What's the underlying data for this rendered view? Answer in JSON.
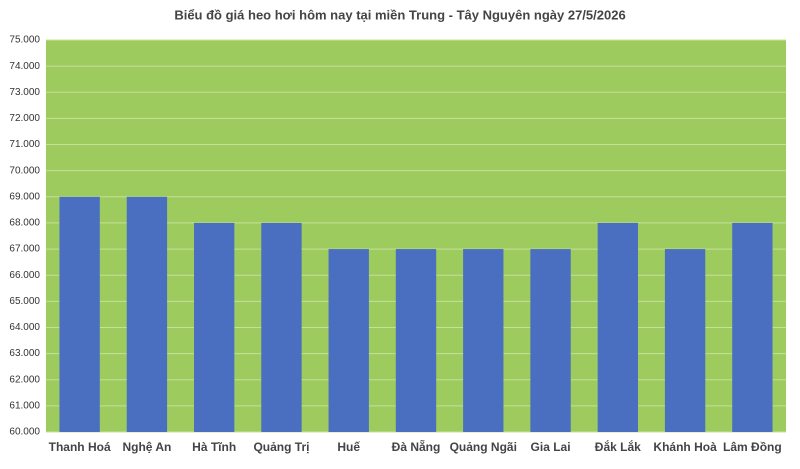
{
  "chart_data": {
    "type": "bar",
    "title": "Biểu đồ giá heo hơi hôm nay tại miền Trung - Tây Nguyên ngày 27/5/2026",
    "categories": [
      "Thanh Hoá",
      "Nghệ An",
      "Hà Tĩnh",
      "Quảng Trị",
      "Huế",
      "Đà Nẵng",
      "Quảng Ngãi",
      "Gia Lai",
      "Đắk Lắk",
      "Khánh Hoà",
      "Lâm Đồng"
    ],
    "values": [
      69000,
      69000,
      68000,
      68000,
      67000,
      67000,
      67000,
      67000,
      68000,
      67000,
      68000
    ],
    "color": "#4a6fc0",
    "ylim": [
      60000,
      75000
    ],
    "yticks": [
      {
        "value": 60000,
        "label": "60.000"
      },
      {
        "value": 61000,
        "label": "61.000"
      },
      {
        "value": 62000,
        "label": "62.000"
      },
      {
        "value": 63000,
        "label": "63.000"
      },
      {
        "value": 64000,
        "label": "64.000"
      },
      {
        "value": 65000,
        "label": "65.000"
      },
      {
        "value": 66000,
        "label": "66.000"
      },
      {
        "value": 67000,
        "label": "67.000"
      },
      {
        "value": 68000,
        "label": "68.000"
      },
      {
        "value": 69000,
        "label": "69.000"
      },
      {
        "value": 70000,
        "label": "70.000"
      },
      {
        "value": 71000,
        "label": "71.000"
      },
      {
        "value": 72000,
        "label": "72.000"
      },
      {
        "value": 73000,
        "label": "73.000"
      },
      {
        "value": 74000,
        "label": "74.000"
      },
      {
        "value": 75000,
        "label": "75.000"
      }
    ],
    "grid": true
  }
}
